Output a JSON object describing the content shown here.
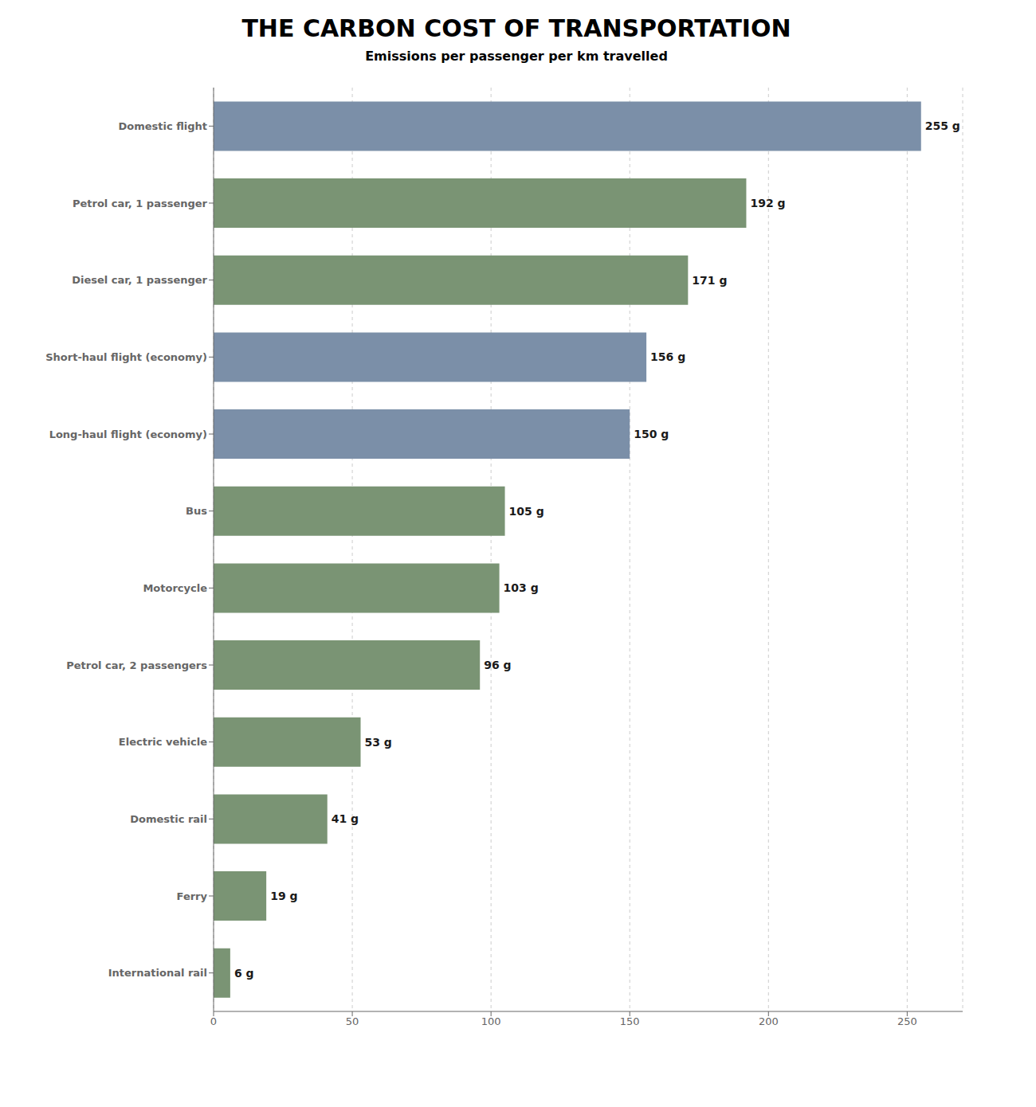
{
  "chart_data": {
    "type": "bar",
    "orientation": "horizontal",
    "title": "THE CARBON COST OF TRANSPORTATION",
    "subtitle": "Emissions per passenger per km travelled",
    "categories": [
      "Domestic flight",
      "Petrol car, 1 passenger",
      "Diesel car, 1 passenger",
      "Short-haul flight (economy)",
      "Long-haul flight (economy)",
      "Bus",
      "Motorcycle",
      "Petrol car, 2 passengers",
      "Electric vehicle",
      "Domestic rail",
      "Ferry",
      "International rail"
    ],
    "values": [
      255,
      192,
      171,
      156,
      150,
      105,
      103,
      96,
      53,
      41,
      19,
      6
    ],
    "value_labels": [
      "255 g",
      "192 g",
      "171 g",
      "156 g",
      "150 g",
      "105 g",
      "103 g",
      "96 g",
      "53 g",
      "41 g",
      "19 g",
      "6 g"
    ],
    "colors": [
      "#7b8fa8",
      "#7a9474",
      "#7a9474",
      "#7b8fa8",
      "#7b8fa8",
      "#7a9474",
      "#7a9474",
      "#7a9474",
      "#7a9474",
      "#7a9474",
      "#7a9474",
      "#7a9474"
    ],
    "xlim": [
      0,
      270
    ],
    "xticks": [
      0,
      50,
      100,
      150,
      200,
      250
    ],
    "grid": true,
    "data_labels": true
  }
}
